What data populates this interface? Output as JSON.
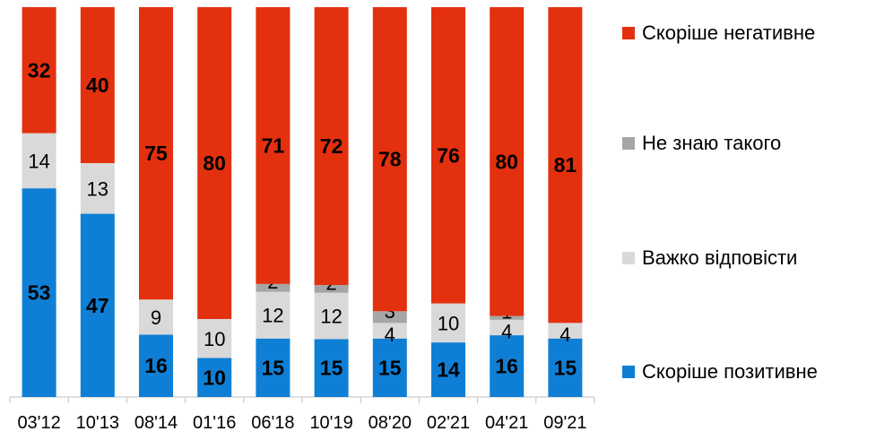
{
  "chart_data": {
    "type": "bar",
    "stacked": true,
    "categories": [
      "03'12",
      "10'13",
      "08'14",
      "01'16",
      "06'18",
      "10'19",
      "08'20",
      "02'21",
      "04'21",
      "09'21"
    ],
    "series": [
      {
        "name": "Скоріше позитивне",
        "key": "pos",
        "color": "#0f7fd6",
        "bold": true,
        "values": [
          53,
          47,
          16,
          10,
          15,
          15,
          15,
          14,
          16,
          15
        ]
      },
      {
        "name": "Важко відповісти",
        "key": "hard",
        "color": "#d9d9d9",
        "bold": false,
        "values": [
          14,
          13,
          9,
          10,
          12,
          12,
          4,
          10,
          4,
          4
        ]
      },
      {
        "name": "Не знаю такого",
        "key": "unknown",
        "color": "#a6a6a6",
        "bold": false,
        "values": [
          null,
          null,
          null,
          null,
          2,
          2,
          3,
          null,
          1,
          null
        ]
      },
      {
        "name": "Скоріше негативне",
        "key": "neg",
        "color": "#e3300f",
        "bold": true,
        "values": [
          32,
          40,
          75,
          80,
          71,
          72,
          78,
          76,
          80,
          81
        ]
      }
    ],
    "legend_order": [
      "neg",
      "unknown",
      "hard",
      "pos"
    ],
    "legend_position": "right",
    "ylim": [
      0,
      100
    ],
    "grid": false
  }
}
